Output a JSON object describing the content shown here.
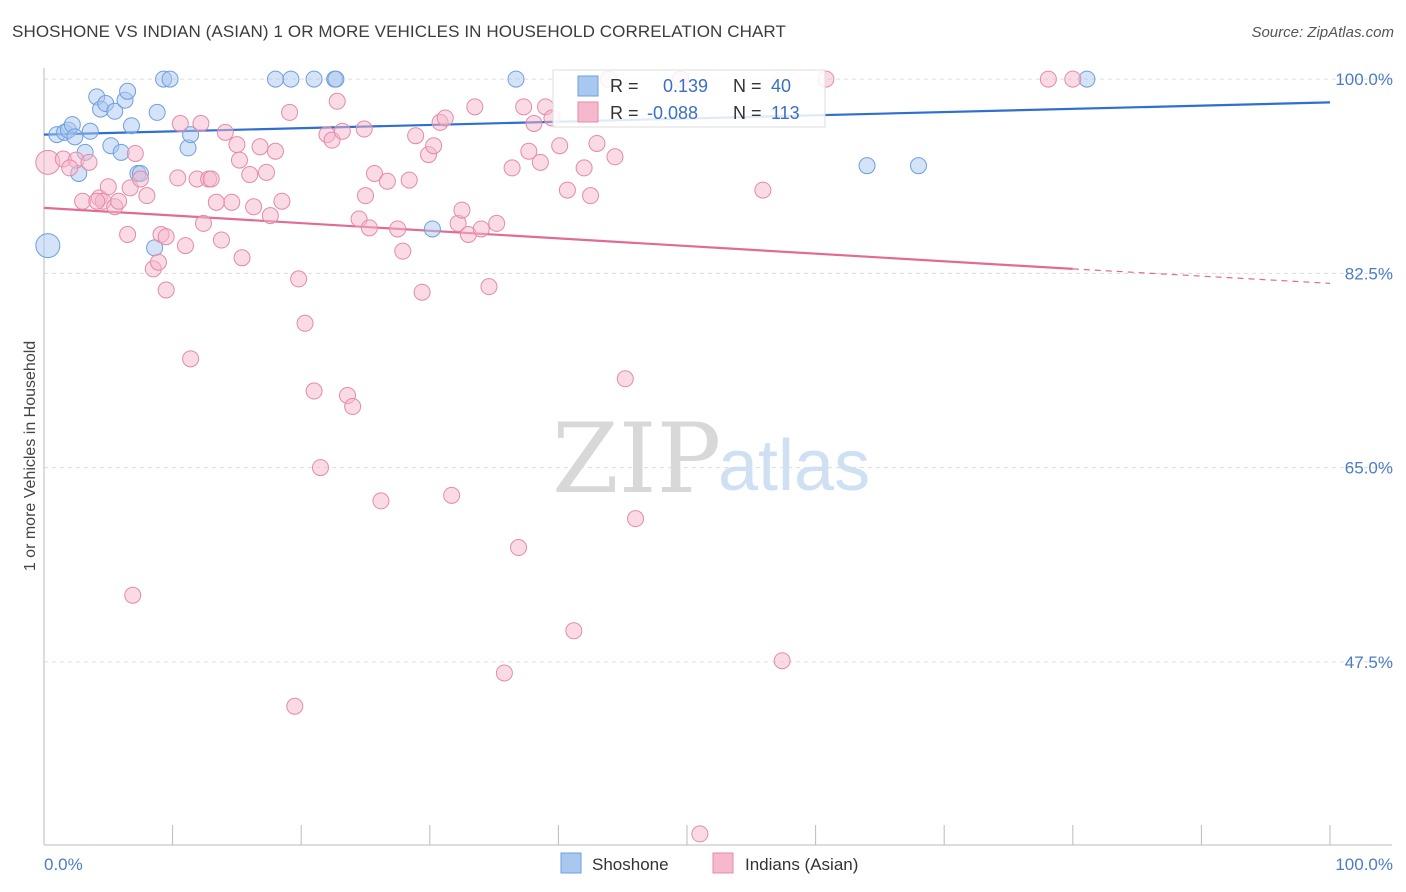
{
  "header": {
    "title": "SHOSHONE VS INDIAN (ASIAN) 1 OR MORE VEHICLES IN HOUSEHOLD CORRELATION CHART",
    "source": "Source: ZipAtlas.com"
  },
  "watermark": {
    "zip": "ZIP",
    "atlas": "atlas"
  },
  "stats_box": {
    "rows": [
      {
        "r_label": "R =",
        "r_value": "0.139",
        "n_label": "N =",
        "n_value": "40",
        "color": "#a9c8f0"
      },
      {
        "r_label": "R =",
        "r_value": "-0.088",
        "n_label": "N =",
        "n_value": "113",
        "color": "#f6b8cc"
      }
    ]
  },
  "legend": {
    "items": [
      {
        "label": "Shoshone",
        "color": "#a9c8f0"
      },
      {
        "label": "Indians (Asian)",
        "color": "#f6b8cc"
      }
    ]
  },
  "chart_data": {
    "type": "scatter",
    "ylabel": "1 or more Vehicles in Household",
    "xlabel": "",
    "xlim": [
      0,
      100
    ],
    "ylim": [
      31,
      101
    ],
    "y_ticks": [
      {
        "value": 100,
        "label": "100.0%"
      },
      {
        "value": 82.5,
        "label": "82.5%"
      },
      {
        "value": 65,
        "label": "65.0%"
      },
      {
        "value": 47.5,
        "label": "47.5%"
      }
    ],
    "x_ticks": [
      {
        "value": 0,
        "label": "0.0%"
      },
      {
        "value": 100,
        "label": "100.0%"
      }
    ],
    "grid": true,
    "legend_position": "bottom-center",
    "series": [
      {
        "name": "Shoshone",
        "color": "#a9c8f0",
        "stroke": "#6f9fdc",
        "trend": {
          "x": [
            0,
            100
          ],
          "y": [
            95.0,
            97.9
          ],
          "color": "#2f6fcf"
        },
        "points": [
          [
            0.3,
            85.0
          ],
          [
            1.0,
            95.0
          ],
          [
            1.6,
            95.2
          ],
          [
            1.9,
            95.4
          ],
          [
            2.2,
            95.9
          ],
          [
            2.4,
            94.8
          ],
          [
            2.7,
            91.5
          ],
          [
            3.2,
            93.4
          ],
          [
            3.6,
            95.3
          ],
          [
            4.1,
            98.4
          ],
          [
            4.4,
            97.3
          ],
          [
            4.8,
            97.8
          ],
          [
            5.2,
            94.0
          ],
          [
            5.5,
            97.1
          ],
          [
            6.0,
            93.4
          ],
          [
            6.3,
            98.1
          ],
          [
            6.5,
            98.9
          ],
          [
            6.8,
            95.8
          ],
          [
            7.3,
            91.5
          ],
          [
            7.5,
            91.5
          ],
          [
            8.6,
            84.8
          ],
          [
            8.8,
            97.0
          ],
          [
            9.3,
            100.0
          ],
          [
            9.8,
            100.0
          ],
          [
            11.2,
            93.8
          ],
          [
            11.4,
            95.0
          ],
          [
            18.0,
            100.0
          ],
          [
            19.2,
            100.0
          ],
          [
            21.0,
            100.0
          ],
          [
            22.6,
            100.0
          ],
          [
            22.7,
            100.0
          ],
          [
            30.2,
            86.5
          ],
          [
            36.7,
            100.0
          ],
          [
            64.0,
            92.2
          ],
          [
            68.0,
            92.2
          ],
          [
            81.1,
            100.0
          ]
        ]
      },
      {
        "name": "Indians (Asian)",
        "color": "#f6b8cc",
        "stroke": "#e48aa8",
        "trend": {
          "x": [
            0,
            80
          ],
          "y": [
            88.4,
            82.9
          ],
          "dash_to": [
            100,
            81.6
          ],
          "color": "#e26b95"
        },
        "points": [
          [
            0.3,
            92.5
          ],
          [
            1.5,
            92.8
          ],
          [
            2.5,
            92.7
          ],
          [
            3.0,
            89.0
          ],
          [
            3.5,
            92.5
          ],
          [
            4.3,
            89.3
          ],
          [
            4.6,
            89.0
          ],
          [
            5.0,
            90.3
          ],
          [
            5.5,
            88.5
          ],
          [
            5.8,
            89.0
          ],
          [
            6.5,
            86.0
          ],
          [
            6.7,
            90.2
          ],
          [
            7.1,
            93.3
          ],
          [
            7.5,
            91.0
          ],
          [
            8.0,
            89.5
          ],
          [
            8.5,
            82.9
          ],
          [
            8.9,
            83.5
          ],
          [
            9.1,
            86.0
          ],
          [
            9.5,
            85.8
          ],
          [
            10.4,
            91.1
          ],
          [
            10.6,
            96.0
          ],
          [
            11.0,
            85.0
          ],
          [
            11.4,
            74.8
          ],
          [
            11.9,
            91.0
          ],
          [
            12.2,
            96.0
          ],
          [
            12.4,
            87.0
          ],
          [
            12.8,
            91.0
          ],
          [
            13.0,
            91.0
          ],
          [
            13.8,
            85.5
          ],
          [
            14.1,
            95.2
          ],
          [
            14.6,
            88.9
          ],
          [
            15.0,
            94.1
          ],
          [
            15.4,
            83.9
          ],
          [
            16.0,
            91.4
          ],
          [
            16.3,
            88.5
          ],
          [
            16.8,
            93.9
          ],
          [
            17.3,
            91.6
          ],
          [
            17.6,
            87.7
          ],
          [
            18.0,
            93.5
          ],
          [
            18.5,
            89.0
          ],
          [
            19.1,
            97.0
          ],
          [
            19.8,
            82.0
          ],
          [
            20.3,
            78.0
          ],
          [
            21.0,
            71.9
          ],
          [
            21.5,
            65.0
          ],
          [
            22.0,
            95.0
          ],
          [
            22.4,
            94.5
          ],
          [
            22.8,
            98.0
          ],
          [
            23.2,
            95.3
          ],
          [
            23.6,
            71.5
          ],
          [
            24.0,
            70.5
          ],
          [
            24.5,
            87.4
          ],
          [
            24.9,
            95.5
          ],
          [
            25.3,
            86.6
          ],
          [
            25.7,
            91.5
          ],
          [
            26.2,
            62.0
          ],
          [
            26.7,
            90.8
          ],
          [
            27.5,
            86.5
          ],
          [
            27.9,
            84.5
          ],
          [
            28.4,
            90.9
          ],
          [
            28.9,
            94.9
          ],
          [
            29.4,
            80.8
          ],
          [
            29.9,
            93.2
          ],
          [
            30.3,
            94.0
          ],
          [
            30.8,
            96.1
          ],
          [
            31.2,
            96.5
          ],
          [
            31.7,
            62.5
          ],
          [
            32.2,
            87.0
          ],
          [
            32.5,
            88.2
          ],
          [
            33.0,
            86.0
          ],
          [
            33.5,
            97.5
          ],
          [
            34.0,
            86.5
          ],
          [
            34.6,
            81.3
          ],
          [
            35.2,
            87.0
          ],
          [
            35.8,
            46.5
          ],
          [
            36.4,
            92.0
          ],
          [
            36.9,
            57.8
          ],
          [
            37.3,
            97.5
          ],
          [
            37.7,
            93.5
          ],
          [
            38.1,
            96.0
          ],
          [
            38.6,
            92.5
          ],
          [
            39.0,
            97.5
          ],
          [
            39.5,
            96.5
          ],
          [
            40.1,
            94.0
          ],
          [
            40.7,
            90.0
          ],
          [
            41.2,
            50.3
          ],
          [
            42.0,
            92.0
          ],
          [
            42.5,
            89.5
          ],
          [
            43.0,
            94.2
          ],
          [
            43.9,
            100.0
          ],
          [
            44.4,
            93.0
          ],
          [
            45.2,
            73.0
          ],
          [
            46.0,
            60.4
          ],
          [
            49.5,
            100.0
          ],
          [
            51.0,
            32.0
          ],
          [
            55.9,
            90.0
          ],
          [
            57.4,
            47.6
          ],
          [
            60.8,
            100.0
          ],
          [
            78.1,
            100.0
          ],
          [
            80.0,
            100.0
          ],
          [
            6.9,
            53.5
          ],
          [
            19.5,
            43.5
          ],
          [
            15.2,
            92.7
          ],
          [
            2.0,
            92.0
          ],
          [
            4.1,
            89.0
          ],
          [
            9.5,
            81.0
          ],
          [
            13.4,
            88.9
          ],
          [
            25.0,
            89.5
          ]
        ]
      }
    ]
  }
}
